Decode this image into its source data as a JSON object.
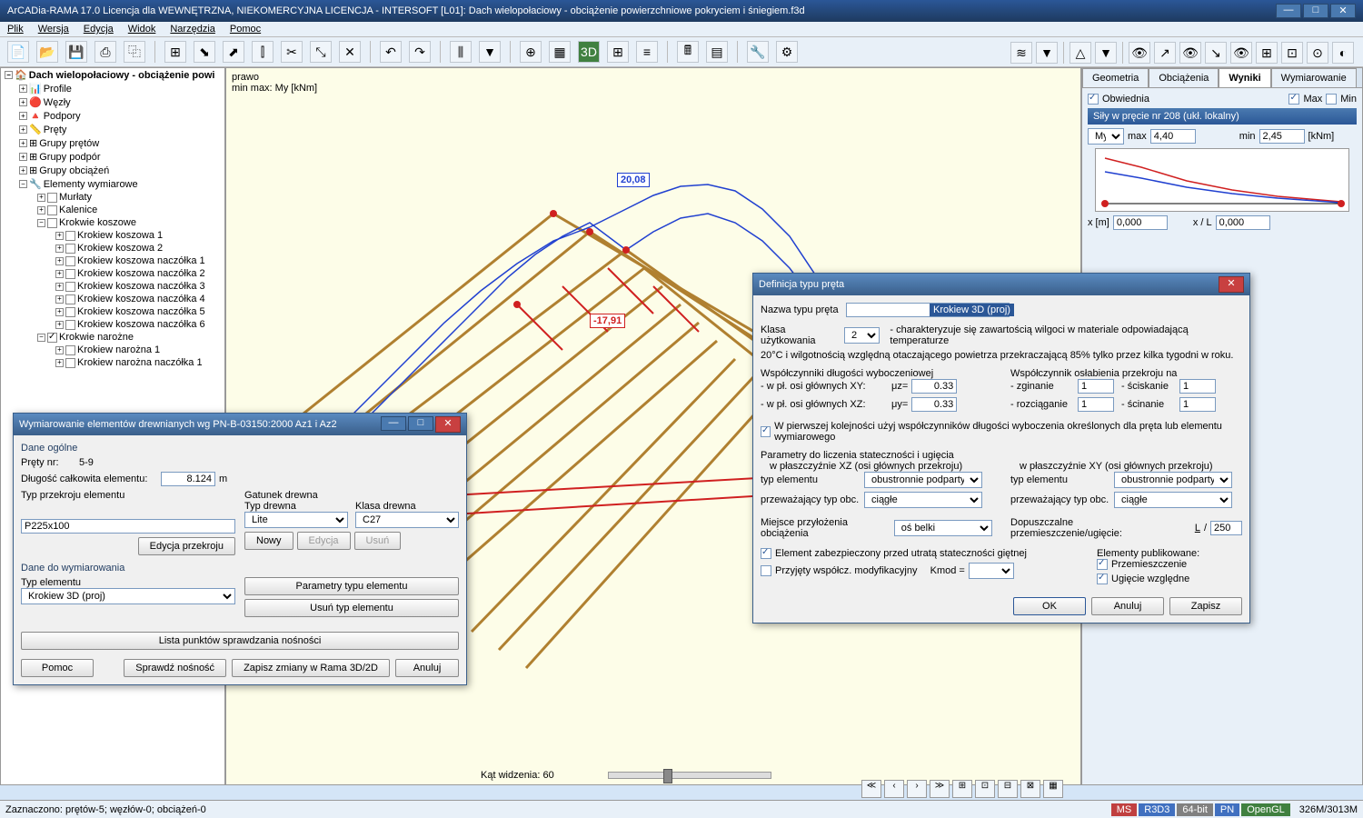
{
  "title": "ArCADia-RAMA 17.0 Licencja dla WEWNĘTRZNA, NIEKOMERCYJNA LICENCJA - INTERSOFT [L01]: Dach wielopołaciowy - obciążenie powierzchniowe pokryciem i śniegiem.f3d",
  "menu": [
    "Plik",
    "Wersja",
    "Edycja",
    "Widok",
    "Narzędzia",
    "Pomoc"
  ],
  "tree": {
    "root": "Dach wielopołaciowy - obciążenie powi",
    "items": [
      "Profile",
      "Węzły",
      "Podpory",
      "Pręty",
      "Grupy prętów",
      "Grupy podpór",
      "Grupy obciążeń",
      "Elementy wymiarowe"
    ],
    "sub": [
      "Murłaty",
      "Kalenice",
      "Krokwie koszowe"
    ],
    "koszowe": [
      "Krokiew koszowa 1",
      "Krokiew koszowa 2",
      "Krokiew koszowa naczółka 1",
      "Krokiew koszowa naczółka 2",
      "Krokiew koszowa naczółka 3",
      "Krokiew koszowa naczółka 4",
      "Krokiew koszowa naczółka 5",
      "Krokiew koszowa naczółka 6"
    ],
    "narozne_label": "Krokwie narożne",
    "narozne": [
      "Krokiew narożna 1",
      "Krokiew narożna naczółka 1"
    ]
  },
  "viewport": {
    "label1": "prawo",
    "label2": "min max: My [kNm]",
    "val_top": "20,08",
    "val_mid": "-17,91",
    "angle_label": "Kąt widzenia: 60"
  },
  "right": {
    "tabs": [
      "Geometria",
      "Obciążenia",
      "Wyniki",
      "Wymiarowanie"
    ],
    "obwiednia": "Obwiednia",
    "max": "Max",
    "min": "Min",
    "sily": "Siły w pręcie nr 208 (ukł. lokalny)",
    "my": "My",
    "max_lbl": "max",
    "max_val": "4,40",
    "min_lbl": "min",
    "min_val": "2,45",
    "unit": "[kNm]",
    "xm": "x [m]",
    "xm_val": "0,000",
    "xl": "x / L",
    "xl_val": "0,000"
  },
  "dlg1": {
    "title": "Wymiarowanie elementów drewnianych wg PN-B-03150:2000 Az1 i Az2",
    "dane_ogolne": "Dane ogólne",
    "prety_nr": "Pręty nr:",
    "prety_val": "5-9",
    "dlugosc": "Długość całkowita elementu:",
    "dlugosc_val": "8.124",
    "dlugosc_unit": "m",
    "typ_przekroju": "Typ przekroju elementu",
    "przekroj_val": "P225x100",
    "edycja_przekroju": "Edycja przekroju",
    "gatunek": "Gatunek drewna",
    "typ_drewna": "Typ drewna",
    "typ_drewna_val": "Lite",
    "klasa": "Klasa drewna",
    "klasa_val": "C27",
    "nowy": "Nowy",
    "edycja": "Edycja",
    "usun": "Usuń",
    "dane_wym": "Dane do wymiarowania",
    "typ_el": "Typ elementu",
    "typ_el_val": "Krokiew 3D (proj)",
    "parametry": "Parametry typu elementu",
    "usun_typ": "Usuń typ elementu",
    "lista": "Lista punktów sprawdzania nośności",
    "pomoc": "Pomoc",
    "sprawdz": "Sprawdź nośność",
    "zapisz": "Zapisz zmiany w Rama 3D/2D",
    "anuluj": "Anuluj"
  },
  "dlg2": {
    "title": "Definicja typu pręta",
    "nazwa": "Nazwa typu pręta",
    "nazwa_val": "Krokiew 3D (proj)",
    "klasa_uz": "Klasa użytkowania",
    "klasa_uz_val": "2",
    "klasa_desc": "- charakteryzuje się zawartością wilgoci w materiale odpowiadającą temperaturze",
    "klasa_desc2": "20°C i wilgotnością względną otaczającego powietrza przekraczającą 85% tylko przez kilka tygodni w roku.",
    "wsp_dl": "Współczynniki długości wyboczeniowej",
    "wpl_xy": "- w pł. osi głównych XY:",
    "muz": "μz=",
    "muz_val": "0.33",
    "wpl_xz": "- w pł. osi głównych XZ:",
    "muy": "μy=",
    "muy_val": "0.33",
    "wsp_osl": "Współczynnik osłabienia przekroju na",
    "zginanie": "- zginanie",
    "zg_val": "1",
    "rozciaganie": "- rozciąganie",
    "rz_val": "1",
    "sciskanie": "- ściskanie",
    "sc_val": "1",
    "scinanie": "- ścinanie",
    "sn_val": "1",
    "pierwsza": "W pierwszej kolejności użyj współczynników długości wyboczenia określonych dla pręta lub elementu wymiarowego",
    "param_stat": "Parametry do liczenia stateczności i ugięcia",
    "pl_xz": "w płaszczyźnie XZ (osi głównych przekroju)",
    "pl_xy": "w płaszczyźnie XY (osi głównych przekroju)",
    "typ_elem": "typ elementu",
    "obustr": "obustronnie podparty",
    "przew": "przeważający typ obc.",
    "ciagle": "ciągłe",
    "miejsce": "Miejsce przyłożenia obciążenia",
    "os_belki": "oś belki",
    "dopusz": "Dopuszczalne przemieszczenie/ugięcie:",
    "l250": "L",
    "v250": "250",
    "el_zab": "Element zabezpieczony przed utratą stateczności giętnej",
    "przyj": "Przyjęty współcz. modyfikacyjny",
    "kmod": "Kmod =",
    "el_pub": "Elementy publikowane:",
    "przem": "Przemieszczenie",
    "ugiecie": "Ugięcie względne",
    "ok": "OK",
    "anuluj": "Anuluj",
    "zapisz": "Zapisz"
  },
  "status": {
    "left": "Zaznaczono: prętów-5; węzłów-0; obciążeń-0",
    "badges": [
      "MS",
      "R3D3",
      "64-bit",
      "PN",
      "OpenGL"
    ],
    "badge_colors": [
      "#c04040",
      "#4070c0",
      "#808080",
      "#4070c0",
      "#408040"
    ],
    "mem": "326M/3013M"
  }
}
